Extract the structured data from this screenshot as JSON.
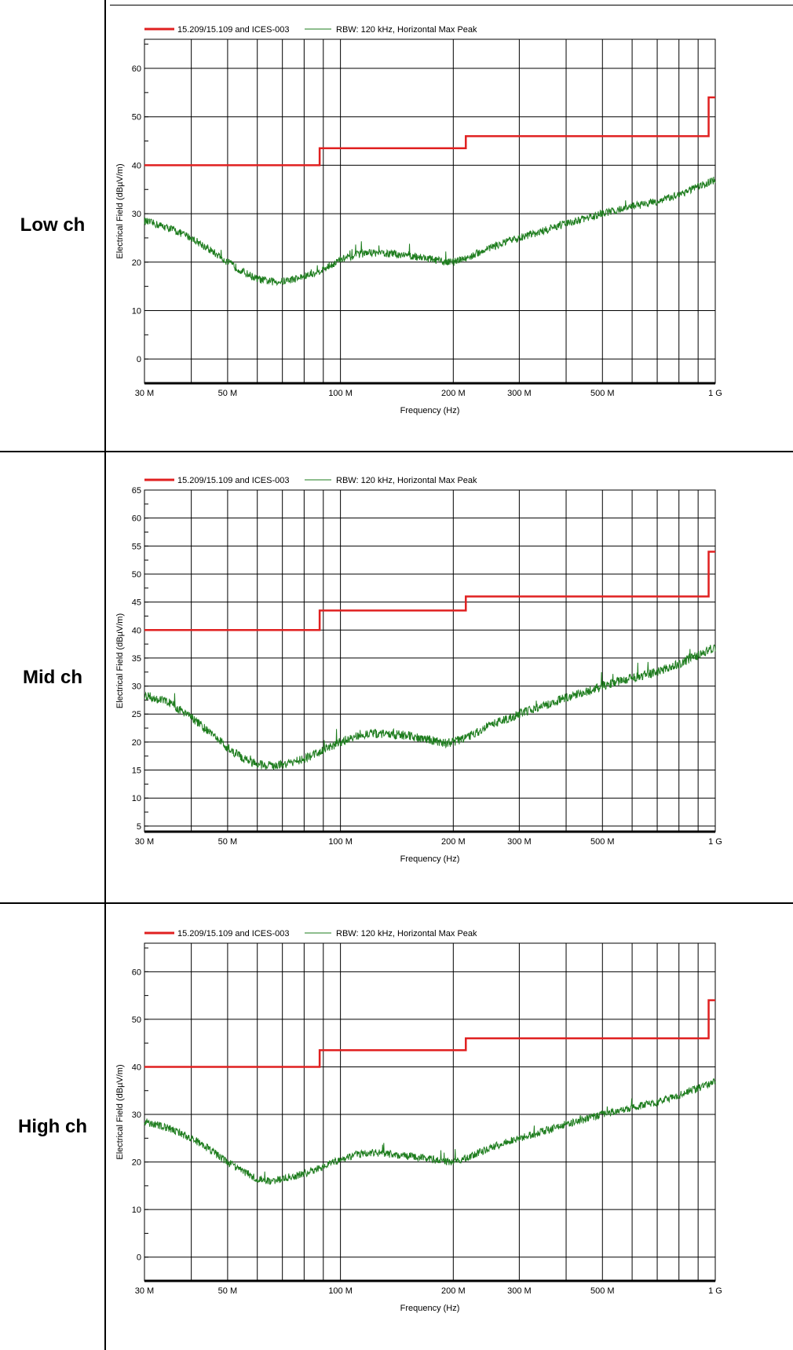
{
  "header": {
    "title": ""
  },
  "rows": [
    {
      "label": "Low ch"
    },
    {
      "label": "Mid ch"
    },
    {
      "label": "High ch"
    }
  ],
  "colors": {
    "limit": "#e02020",
    "trace": "#1e7d1e",
    "grid": "#000000"
  },
  "chart_data": [
    {
      "type": "line",
      "title": "",
      "xlabel": "Frequency (Hz)",
      "ylabel": "Electrical Field (dBµV/m)",
      "x_scale": "log",
      "xlim": [
        30000000,
        1000000000
      ],
      "ylim": [
        -5,
        66
      ],
      "y_ticks": [
        0,
        10,
        20,
        30,
        40,
        50,
        60
      ],
      "x_tick_labels": [
        {
          "value": 30000000,
          "label": "30 M"
        },
        {
          "value": 50000000,
          "label": "50 M"
        },
        {
          "value": 100000000,
          "label": "100 M"
        },
        {
          "value": 200000000,
          "label": "200 M"
        },
        {
          "value": 300000000,
          "label": "300 M"
        },
        {
          "value": 500000000,
          "label": "500 M"
        },
        {
          "value": 1000000000,
          "label": "1 G"
        }
      ],
      "legend": [
        {
          "name": "15.209/15.109 and ICES-003",
          "color": "#e02020"
        },
        {
          "name": "RBW: 120 kHz, Horizontal Max Peak",
          "color": "#1e7d1e"
        }
      ],
      "series": [
        {
          "name": "15.209/15.109 and ICES-003",
          "x": [
            30000000,
            88000000,
            88000000,
            216000000,
            216000000,
            960000000,
            960000000,
            1000000000
          ],
          "y": [
            40,
            40,
            43.5,
            43.5,
            46,
            46,
            54,
            54
          ]
        },
        {
          "name": "RBW: 120 kHz, Horizontal Max Peak",
          "x": [
            30000000,
            35000000,
            40000000,
            45000000,
            50000000,
            55000000,
            60000000,
            65000000,
            70000000,
            80000000,
            90000000,
            100000000,
            110000000,
            120000000,
            130000000,
            150000000,
            170000000,
            190000000,
            200000000,
            220000000,
            250000000,
            300000000,
            350000000,
            400000000,
            450000000,
            500000000,
            600000000,
            700000000,
            800000000,
            900000000,
            1000000000
          ],
          "y": [
            28.5,
            27,
            25,
            22.5,
            20,
            18,
            16.5,
            16,
            16,
            17,
            18.5,
            20.5,
            21.5,
            22,
            21.8,
            21.5,
            20.8,
            20,
            20,
            21,
            23,
            25,
            26.5,
            28,
            29,
            30,
            31.5,
            32.5,
            34,
            35.5,
            37
          ]
        }
      ]
    },
    {
      "type": "line",
      "title": "",
      "xlabel": "Frequency (Hz)",
      "ylabel": "Electrical Field (dBµV/m)",
      "x_scale": "log",
      "xlim": [
        30000000,
        1000000000
      ],
      "ylim": [
        4,
        65
      ],
      "y_ticks": [
        5,
        10,
        15,
        20,
        25,
        30,
        35,
        40,
        45,
        50,
        55,
        60,
        65
      ],
      "x_tick_labels": [
        {
          "value": 30000000,
          "label": "30 M"
        },
        {
          "value": 50000000,
          "label": "50 M"
        },
        {
          "value": 100000000,
          "label": "100 M"
        },
        {
          "value": 200000000,
          "label": "200 M"
        },
        {
          "value": 300000000,
          "label": "300 M"
        },
        {
          "value": 500000000,
          "label": "500 M"
        },
        {
          "value": 1000000000,
          "label": "1 G"
        }
      ],
      "legend": [
        {
          "name": "15.209/15.109 and ICES-003",
          "color": "#e02020"
        },
        {
          "name": "RBW: 120 kHz, Horizontal Max Peak",
          "color": "#1e7d1e"
        }
      ],
      "series": [
        {
          "name": "15.209/15.109 and ICES-003",
          "x": [
            30000000,
            88000000,
            88000000,
            216000000,
            216000000,
            960000000,
            960000000,
            1000000000
          ],
          "y": [
            40,
            40,
            43.5,
            43.5,
            46,
            46,
            54,
            54
          ]
        },
        {
          "name": "RBW: 120 kHz, Horizontal Max Peak",
          "x": [
            30000000,
            35000000,
            40000000,
            45000000,
            50000000,
            55000000,
            60000000,
            65000000,
            70000000,
            80000000,
            90000000,
            100000000,
            110000000,
            120000000,
            130000000,
            150000000,
            170000000,
            190000000,
            200000000,
            220000000,
            250000000,
            300000000,
            350000000,
            400000000,
            450000000,
            500000000,
            600000000,
            700000000,
            800000000,
            900000000,
            1000000000
          ],
          "y": [
            28.5,
            27,
            24.5,
            21.5,
            19,
            17,
            16,
            15.8,
            16,
            17,
            18.5,
            20,
            21,
            21.5,
            21.5,
            21.2,
            20.5,
            19.8,
            20,
            21,
            23,
            25,
            26.5,
            28,
            29,
            30,
            31.5,
            32.5,
            34,
            35.5,
            37
          ]
        }
      ]
    },
    {
      "type": "line",
      "title": "",
      "xlabel": "Frequency (Hz)",
      "ylabel": "Electrical Field (dBµV/m)",
      "x_scale": "log",
      "xlim": [
        30000000,
        1000000000
      ],
      "ylim": [
        -5,
        66
      ],
      "y_ticks": [
        0,
        10,
        20,
        30,
        40,
        50,
        60
      ],
      "x_tick_labels": [
        {
          "value": 30000000,
          "label": "30 M"
        },
        {
          "value": 50000000,
          "label": "50 M"
        },
        {
          "value": 100000000,
          "label": "100 M"
        },
        {
          "value": 200000000,
          "label": "200 M"
        },
        {
          "value": 300000000,
          "label": "300 M"
        },
        {
          "value": 500000000,
          "label": "500 M"
        },
        {
          "value": 1000000000,
          "label": "1 G"
        }
      ],
      "legend": [
        {
          "name": "15.209/15.109 and ICES-003",
          "color": "#e02020"
        },
        {
          "name": "RBW: 120 kHz, Horizontal Max Peak",
          "color": "#1e7d1e"
        }
      ],
      "series": [
        {
          "name": "15.209/15.109 and ICES-003",
          "x": [
            30000000,
            88000000,
            88000000,
            216000000,
            216000000,
            960000000,
            960000000,
            1000000000
          ],
          "y": [
            40,
            40,
            43.5,
            43.5,
            46,
            46,
            54,
            54
          ]
        },
        {
          "name": "RBW: 120 kHz, Horizontal Max Peak",
          "x": [
            30000000,
            35000000,
            40000000,
            45000000,
            50000000,
            55000000,
            60000000,
            65000000,
            70000000,
            80000000,
            90000000,
            100000000,
            110000000,
            120000000,
            130000000,
            150000000,
            170000000,
            190000000,
            200000000,
            220000000,
            250000000,
            300000000,
            350000000,
            400000000,
            450000000,
            500000000,
            600000000,
            700000000,
            800000000,
            900000000,
            1000000000
          ],
          "y": [
            28.5,
            27,
            25,
            22.5,
            20,
            18,
            16.5,
            16,
            16.5,
            17.5,
            19,
            20.5,
            21.5,
            22,
            21.8,
            21.3,
            20.8,
            20,
            20,
            21,
            23,
            25,
            26.5,
            28,
            29,
            30,
            31.5,
            32.5,
            34,
            35.5,
            37
          ]
        }
      ]
    }
  ]
}
